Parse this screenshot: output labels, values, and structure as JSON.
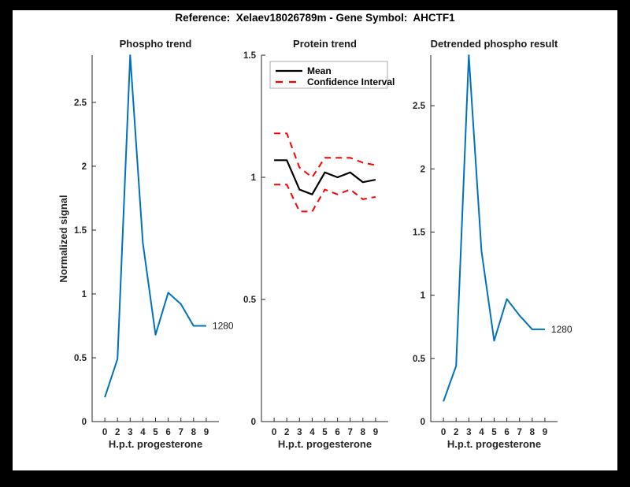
{
  "title": "Reference:  Xelaev18026789m - Gene Symbol:  AHCTF1",
  "style": {
    "background": "#000000",
    "figure_background": "#ffffff",
    "axis_color": "#262626",
    "blue": "#0072BD",
    "red": "#FF0000",
    "black": "#000000"
  },
  "chart_data": [
    {
      "id": "phospho-trend",
      "type": "line",
      "title": "Phospho trend",
      "xlabel": "H.p.t. progesterone",
      "ylabel": "Normalized signal",
      "x_ticklabels": [
        "0",
        "2",
        "3",
        "4",
        "5",
        "6",
        "7",
        "8",
        "9"
      ],
      "ylim": [
        0,
        2.87
      ],
      "yticks": [
        {
          "value": 0,
          "label": "0"
        },
        {
          "value": 0.5,
          "label": "0.5"
        },
        {
          "value": 1,
          "label": "1"
        },
        {
          "value": 1.5,
          "label": "1.5"
        },
        {
          "value": 2,
          "label": "2"
        },
        {
          "value": 2.5,
          "label": "2.5"
        }
      ],
      "grid": false,
      "series": [
        {
          "name": "phospho-signal",
          "color": "#0072BD",
          "style": "solid",
          "values": [
            0.19,
            0.49,
            2.87,
            1.4,
            0.68,
            1.01,
            0.92,
            0.75,
            0.75
          ]
        }
      ],
      "annotation": {
        "text": "1280",
        "x_index": 8,
        "y_value": 0.75
      }
    },
    {
      "id": "protein-trend",
      "type": "line",
      "title": "Protein trend",
      "xlabel": "H.p.t. progesterone",
      "ylabel": "",
      "x_ticklabels": [
        "0",
        "2",
        "3",
        "4",
        "5",
        "6",
        "7",
        "8",
        "9"
      ],
      "ylim": [
        0,
        1.5
      ],
      "yticks": [
        {
          "value": 0,
          "label": "0"
        },
        {
          "value": 0.5,
          "label": "0.5"
        },
        {
          "value": 1,
          "label": "1"
        },
        {
          "value": 1.5,
          "label": "1.5"
        }
      ],
      "grid": false,
      "legend": {
        "position": "top-inside",
        "entries": [
          {
            "label": "Mean",
            "color": "#000000",
            "style": "solid"
          },
          {
            "label": "Confidence Interval",
            "color": "#FF0000",
            "style": "dashed"
          }
        ]
      },
      "series": [
        {
          "name": "mean",
          "color": "#000000",
          "style": "solid",
          "values": [
            1.07,
            1.07,
            0.95,
            0.93,
            1.02,
            1.0,
            1.02,
            0.98,
            0.99
          ]
        },
        {
          "name": "confidence-interval-upper",
          "color": "#FF0000",
          "style": "dashed",
          "values": [
            1.18,
            1.18,
            1.04,
            1.0,
            1.08,
            1.08,
            1.08,
            1.06,
            1.05
          ]
        },
        {
          "name": "confidence-interval-lower",
          "color": "#FF0000",
          "style": "dashed",
          "values": [
            0.97,
            0.97,
            0.86,
            0.86,
            0.95,
            0.93,
            0.95,
            0.91,
            0.92
          ]
        }
      ]
    },
    {
      "id": "detrended-phospho-result",
      "type": "line",
      "title": "Detrended phospho result",
      "xlabel": "H.p.t. progesterone",
      "ylabel": "",
      "x_ticklabels": [
        "0",
        "2",
        "3",
        "4",
        "5",
        "6",
        "7",
        "8",
        "9"
      ],
      "ylim": [
        0,
        2.9
      ],
      "yticks": [
        {
          "value": 0,
          "label": "0"
        },
        {
          "value": 0.5,
          "label": "0.5"
        },
        {
          "value": 1,
          "label": "1"
        },
        {
          "value": 1.5,
          "label": "1.5"
        },
        {
          "value": 2,
          "label": "2"
        },
        {
          "value": 2.5,
          "label": "2.5"
        }
      ],
      "grid": false,
      "series": [
        {
          "name": "detrended-phospho-signal",
          "color": "#0072BD",
          "style": "solid",
          "values": [
            0.16,
            0.44,
            2.9,
            1.35,
            0.64,
            0.97,
            0.84,
            0.73,
            0.73
          ]
        }
      ],
      "annotation": {
        "text": "1280",
        "x_index": 8,
        "y_value": 0.73
      }
    }
  ]
}
